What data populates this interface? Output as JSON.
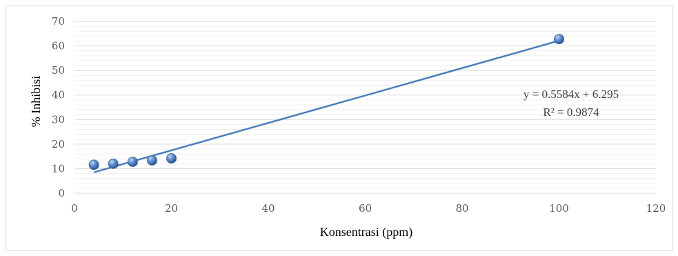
{
  "chart_data": {
    "type": "scatter",
    "title": "",
    "xlabel": "Konsentrasi (ppm)",
    "ylabel": "% Inhibisi",
    "xlim": [
      0,
      120
    ],
    "ylim": [
      0,
      70
    ],
    "x_ticks": [
      "0",
      "20",
      "40",
      "60",
      "80",
      "100",
      "120"
    ],
    "y_ticks": [
      "0",
      "10",
      "20",
      "30",
      "40",
      "50",
      "60",
      "70"
    ],
    "grid": true,
    "legend": "none",
    "series": [
      {
        "x": [
          4,
          8,
          12,
          16,
          20,
          100
        ],
        "y": [
          11.6,
          12.0,
          12.8,
          13.4,
          14.2,
          62.8
        ],
        "color": "#4472c4"
      }
    ],
    "trendline": {
      "type": "linear",
      "slope": 0.5584,
      "intercept": 6.295,
      "x_range": [
        4,
        100
      ],
      "color": "#4a7ebb"
    },
    "annotations": {
      "equation": "y = 0.5584x + 6.295",
      "r_squared": "R² = 0.9874"
    }
  }
}
